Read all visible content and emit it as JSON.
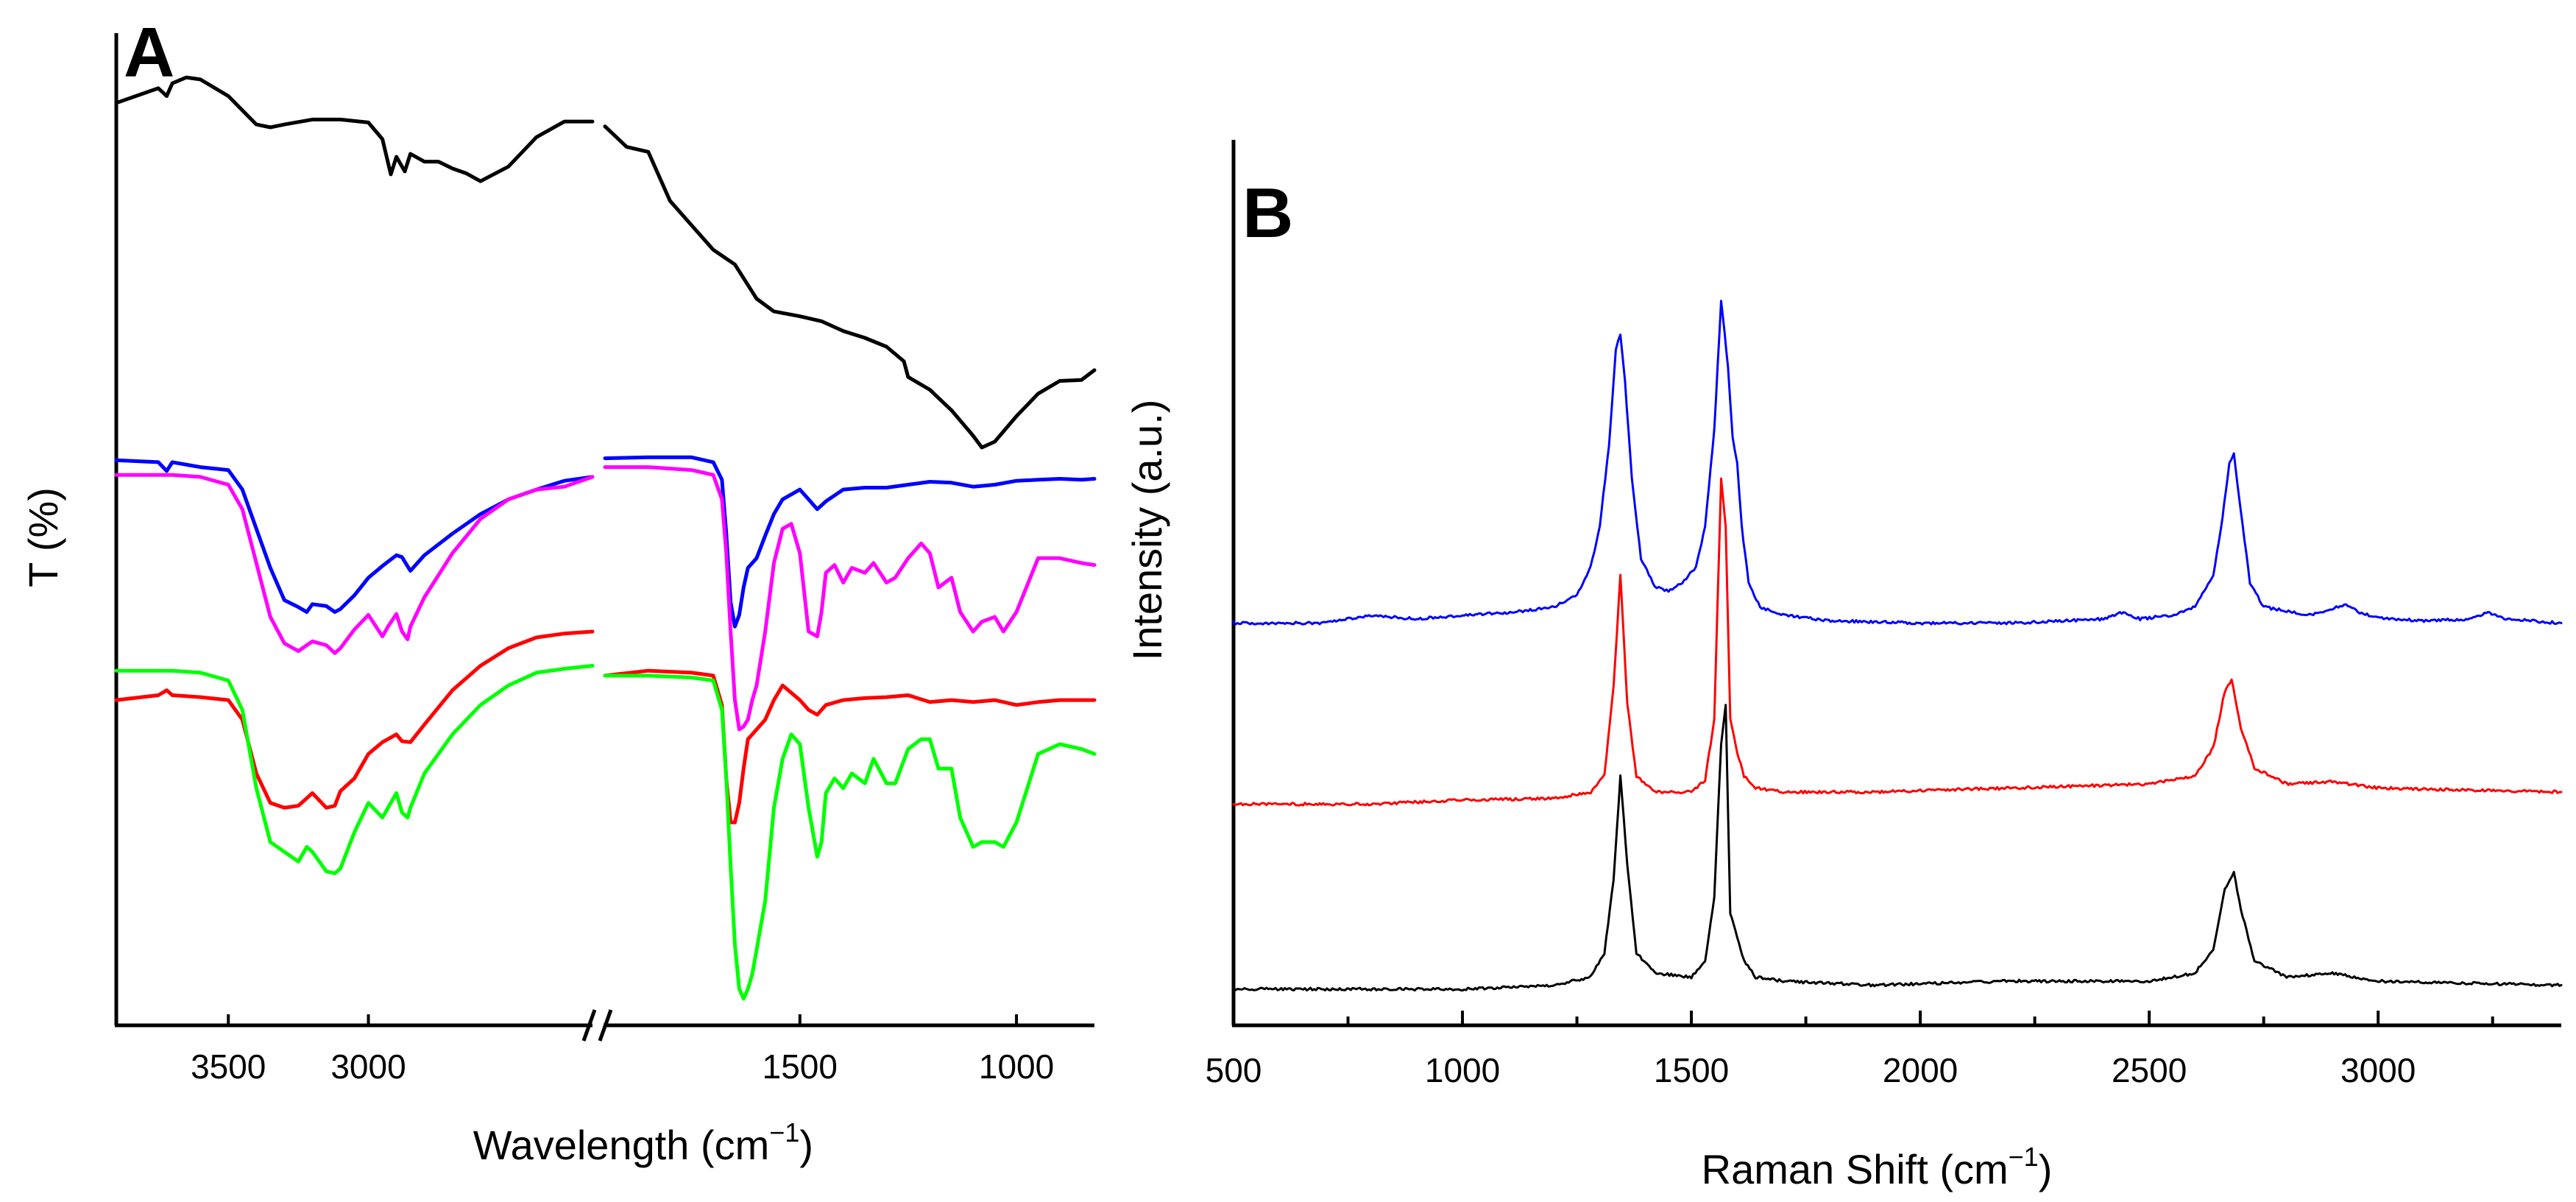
{
  "chart_data": [
    {
      "panel": "A",
      "type": "line",
      "title": "",
      "xlabel": "Wavelength (cm",
      "xlabel_sup": "−1",
      "xlabel_close": ")",
      "ylabel": "T (%)",
      "x_reversed": true,
      "axis_break": true,
      "xlim_left_segment": [
        3900,
        2200
      ],
      "xlim_right_segment": [
        1950,
        820
      ],
      "xticks": [
        3500,
        3000,
        1500,
        1000
      ],
      "xtick_labels": [
        "3500",
        "3000",
        "1500",
        "1000"
      ],
      "y_units": "T (%) arbitrary, stacked traces (0 = bottom, 100 = top)",
      "ylim": [
        0,
        100
      ],
      "series": [
        {
          "name": "trace-1",
          "color": "#000000",
          "x": [
            3900,
            3800,
            3750,
            3720,
            3700,
            3650,
            3600,
            3500,
            3400,
            3350,
            3300,
            3200,
            3100,
            3000,
            2950,
            2920,
            2900,
            2870,
            2850,
            2800,
            2750,
            2700,
            2650,
            2600,
            2500,
            2400,
            2300,
            2200,
            1950,
            1900,
            1850,
            1800,
            1750,
            1700,
            1650,
            1600,
            1560,
            1500,
            1450,
            1400,
            1350,
            1300,
            1260,
            1250,
            1200,
            1150,
            1100,
            1080,
            1050,
            1000,
            950,
            900,
            850,
            820
          ],
          "y": [
            94,
            95,
            95.5,
            94.7,
            96,
            96.6,
            96.4,
            94.7,
            91.8,
            91.5,
            91.8,
            92.3,
            92.3,
            92,
            90.3,
            86.7,
            88.5,
            87,
            88.8,
            88,
            88,
            87.3,
            86.8,
            86,
            87.5,
            90.5,
            92.1,
            92.1,
            91.6,
            89.5,
            89,
            84,
            81.5,
            79,
            77.5,
            74,
            72.7,
            72.2,
            71.7,
            70.7,
            70,
            69.1,
            67.6,
            66,
            64.7,
            62.6,
            60,
            58.8,
            59.4,
            62,
            64.3,
            65.6,
            65.7,
            66.7
          ]
        },
        {
          "name": "trace-2",
          "color": "#0000ff",
          "x": [
            3900,
            3750,
            3720,
            3700,
            3600,
            3500,
            3450,
            3400,
            3350,
            3300,
            3250,
            3220,
            3200,
            3150,
            3120,
            3100,
            3050,
            3000,
            2950,
            2900,
            2880,
            2850,
            2800,
            2700,
            2600,
            2500,
            2400,
            2300,
            2200,
            1950,
            1850,
            1750,
            1700,
            1680,
            1670,
            1660,
            1650,
            1640,
            1630,
            1620,
            1600,
            1580,
            1560,
            1540,
            1500,
            1480,
            1460,
            1440,
            1400,
            1350,
            1300,
            1250,
            1200,
            1150,
            1100,
            1050,
            1000,
            950,
            900,
            850,
            820
          ],
          "y": [
            57.5,
            57.3,
            56.4,
            57.3,
            56.8,
            56.5,
            54.5,
            50.5,
            46.5,
            43.2,
            42.5,
            42,
            42.8,
            42.6,
            42,
            42.3,
            43.7,
            45.5,
            46.7,
            47.8,
            47.6,
            46.2,
            47.8,
            50,
            52,
            53.5,
            54.5,
            55.4,
            55.8,
            57.7,
            57.8,
            57.8,
            57.3,
            55.5,
            50,
            43,
            40.5,
            41.7,
            44.5,
            46.5,
            47.5,
            49.8,
            52,
            53.5,
            54.5,
            53.5,
            52.5,
            53.3,
            54.5,
            54.7,
            54.7,
            55,
            55.3,
            55.2,
            54.8,
            55,
            55.4,
            55.5,
            55.6,
            55.5,
            55.6
          ]
        },
        {
          "name": "trace-3",
          "color": "#ff00ff",
          "x": [
            3900,
            3800,
            3700,
            3600,
            3500,
            3450,
            3400,
            3350,
            3300,
            3250,
            3220,
            3200,
            3150,
            3120,
            3100,
            3050,
            3000,
            2950,
            2930,
            2900,
            2880,
            2860,
            2850,
            2800,
            2700,
            2600,
            2500,
            2400,
            2300,
            2200,
            1950,
            1850,
            1750,
            1700,
            1680,
            1670,
            1660,
            1650,
            1640,
            1630,
            1620,
            1610,
            1600,
            1580,
            1560,
            1540,
            1520,
            1500,
            1480,
            1460,
            1450,
            1440,
            1420,
            1400,
            1380,
            1350,
            1330,
            1300,
            1280,
            1250,
            1220,
            1200,
            1180,
            1150,
            1130,
            1100,
            1080,
            1050,
            1030,
            1000,
            950,
            900,
            850,
            820
          ],
          "y": [
            56,
            56,
            56,
            55.8,
            55,
            52.5,
            47,
            41.5,
            38.8,
            38,
            38.6,
            39,
            38.6,
            37.8,
            38.3,
            40.2,
            41.7,
            39.5,
            40.5,
            41.8,
            40,
            39.2,
            40.5,
            43.5,
            48,
            51.5,
            53.5,
            54.5,
            54.8,
            55.8,
            56.8,
            56.8,
            56.5,
            56,
            53.5,
            48,
            40,
            33,
            30,
            30.3,
            31,
            33,
            34.5,
            40,
            47,
            50.5,
            51,
            48,
            40,
            39.5,
            42,
            46,
            46.8,
            45,
            46.5,
            46,
            47,
            45,
            45.5,
            47.5,
            49,
            48,
            44.5,
            45.5,
            42,
            40,
            41,
            41.5,
            40,
            42,
            47.5,
            47.5,
            47,
            46.8
          ]
        },
        {
          "name": "trace-4",
          "color": "#ff0000",
          "x": [
            3900,
            3750,
            3720,
            3700,
            3600,
            3500,
            3450,
            3400,
            3350,
            3300,
            3250,
            3200,
            3150,
            3120,
            3100,
            3050,
            3000,
            2950,
            2900,
            2880,
            2850,
            2800,
            2700,
            2600,
            2500,
            2400,
            2300,
            2200,
            1950,
            1850,
            1750,
            1700,
            1680,
            1670,
            1660,
            1650,
            1640,
            1630,
            1620,
            1600,
            1580,
            1560,
            1540,
            1500,
            1480,
            1460,
            1440,
            1400,
            1350,
            1300,
            1250,
            1200,
            1150,
            1100,
            1050,
            1000,
            950,
            900,
            850,
            820
          ],
          "y": [
            33,
            33.5,
            34,
            33.5,
            33.3,
            33,
            31,
            25.5,
            22.5,
            22,
            22.2,
            23.5,
            22,
            22.2,
            23.7,
            25,
            27.5,
            28.7,
            29.5,
            28.8,
            28.7,
            30.5,
            34,
            36.5,
            38.3,
            39.4,
            39.8,
            40,
            35.5,
            36,
            35.8,
            35.5,
            32.5,
            25,
            20.5,
            20.5,
            22.5,
            26,
            29,
            30,
            31,
            33,
            34.5,
            33,
            32,
            31.5,
            32.5,
            33,
            33.2,
            33.3,
            33.5,
            32.8,
            33,
            32.8,
            33,
            32.5,
            32.8,
            33,
            33,
            33
          ]
        },
        {
          "name": "trace-5",
          "color": "#00ff00",
          "x": [
            3900,
            3800,
            3700,
            3600,
            3500,
            3450,
            3400,
            3350,
            3300,
            3250,
            3220,
            3200,
            3150,
            3120,
            3100,
            3050,
            3000,
            2950,
            2930,
            2900,
            2880,
            2860,
            2850,
            2800,
            2700,
            2600,
            2500,
            2400,
            2300,
            2200,
            1950,
            1850,
            1750,
            1700,
            1680,
            1670,
            1660,
            1650,
            1640,
            1630,
            1620,
            1610,
            1600,
            1580,
            1560,
            1540,
            1520,
            1500,
            1480,
            1460,
            1450,
            1440,
            1420,
            1400,
            1380,
            1350,
            1330,
            1300,
            1280,
            1250,
            1220,
            1200,
            1180,
            1150,
            1130,
            1100,
            1080,
            1050,
            1030,
            1000,
            950,
            900,
            850,
            820
          ],
          "y": [
            36,
            36,
            36,
            35.8,
            35,
            32,
            24,
            18.5,
            17.5,
            16.5,
            18,
            17.5,
            15.5,
            15.3,
            15.8,
            19.5,
            22.5,
            21,
            22,
            23.5,
            21.5,
            21,
            22,
            25.5,
            29.5,
            32.5,
            34.5,
            35.8,
            36.2,
            36.5,
            35.5,
            35.5,
            35.3,
            35,
            32,
            25,
            16,
            8,
            3.5,
            2.5,
            3.5,
            5,
            7.5,
            12.5,
            22,
            27,
            29.5,
            28.5,
            22,
            17,
            18.5,
            23.5,
            25,
            24,
            25.5,
            24.5,
            27,
            24.5,
            24.5,
            28,
            29,
            29,
            26,
            26,
            21,
            18,
            18.5,
            18.5,
            18,
            20.5,
            27.5,
            28.5,
            28,
            27.5
          ]
        }
      ]
    },
    {
      "panel": "B",
      "type": "line",
      "title": "",
      "xlabel": "Raman Shift (cm",
      "xlabel_sup": "−1",
      "xlabel_close": ")",
      "ylabel": "Intensity (a.u.)",
      "xlim": [
        500,
        3400
      ],
      "xticks": [
        500,
        1000,
        1500,
        2000,
        2500,
        3000
      ],
      "xtick_labels": [
        "500",
        "1000",
        "1500",
        "2000",
        "2500",
        "3000"
      ],
      "minor_xticks": [
        750,
        1250,
        1750,
        2250,
        2750,
        3250
      ],
      "y_units": "Intensity (a.u.) arbitrary, stacked traces (0 = x-axis)",
      "ylim": [
        0,
        100
      ],
      "series": [
        {
          "name": "trace-1",
          "color": "#0000ff",
          "x": [
            500,
            700,
            800,
            900,
            1000,
            1100,
            1200,
            1250,
            1280,
            1300,
            1320,
            1335,
            1345,
            1355,
            1370,
            1390,
            1420,
            1450,
            1480,
            1510,
            1530,
            1550,
            1565,
            1580,
            1590,
            1600,
            1610,
            1625,
            1650,
            1700,
            1800,
            2000,
            2200,
            2400,
            2440,
            2480,
            2550,
            2600,
            2640,
            2660,
            2675,
            2685,
            2700,
            2720,
            2750,
            2800,
            2850,
            2900,
            2930,
            2960,
            3000,
            3100,
            3200,
            3240,
            3280,
            3400
          ],
          "y": [
            50,
            50,
            51,
            50.5,
            51,
            51.3,
            52,
            53.5,
            57,
            62,
            72,
            84,
            86,
            80,
            68,
            58,
            54.5,
            54,
            55,
            57,
            62,
            74,
            90,
            82,
            73,
            70,
            62,
            55,
            52,
            51,
            50.3,
            50,
            50,
            50.5,
            51.3,
            50.5,
            51,
            52,
            56,
            63,
            70,
            71,
            64,
            55,
            52,
            51.5,
            51,
            51.8,
            52.3,
            51.3,
            50.6,
            50.3,
            50.5,
            51.3,
            50.5,
            50
          ]
        },
        {
          "name": "trace-2",
          "color": "#ff0000",
          "x": [
            500,
            800,
            1000,
            1200,
            1280,
            1310,
            1330,
            1345,
            1360,
            1380,
            1420,
            1500,
            1530,
            1550,
            1565,
            1575,
            1585,
            1600,
            1615,
            1640,
            1700,
            1900,
            2200,
            2500,
            2600,
            2640,
            2665,
            2680,
            2700,
            2730,
            2800,
            2900,
            3000,
            3400
          ],
          "y": [
            27.5,
            27.5,
            28,
            28.2,
            29,
            31,
            42,
            56,
            40,
            31,
            29,
            29,
            30.5,
            38,
            68,
            62,
            38,
            34,
            31,
            29.5,
            29,
            29,
            29.5,
            30,
            31,
            34.5,
            41.5,
            43,
            37,
            32,
            30,
            30.3,
            29.5,
            29
          ]
        },
        {
          "name": "trace-3",
          "color": "#000000",
          "x": [
            500,
            800,
            1000,
            1200,
            1280,
            1310,
            1330,
            1345,
            1360,
            1380,
            1420,
            1500,
            1530,
            1550,
            1565,
            1575,
            1585,
            1600,
            1615,
            1640,
            1700,
            1900,
            2200,
            2500,
            2600,
            2640,
            2665,
            2685,
            2700,
            2730,
            2800,
            2900,
            3000,
            3400
          ],
          "y": [
            4.5,
            4.5,
            4.5,
            5,
            6,
            9,
            18,
            31,
            20,
            9,
            6.5,
            6,
            8,
            16,
            35,
            40,
            14,
            11,
            8,
            6,
            5.5,
            5,
            5.5,
            5.5,
            6.5,
            9.5,
            17,
            19,
            14.5,
            8,
            6,
            6.5,
            5.5,
            5
          ]
        }
      ]
    }
  ]
}
